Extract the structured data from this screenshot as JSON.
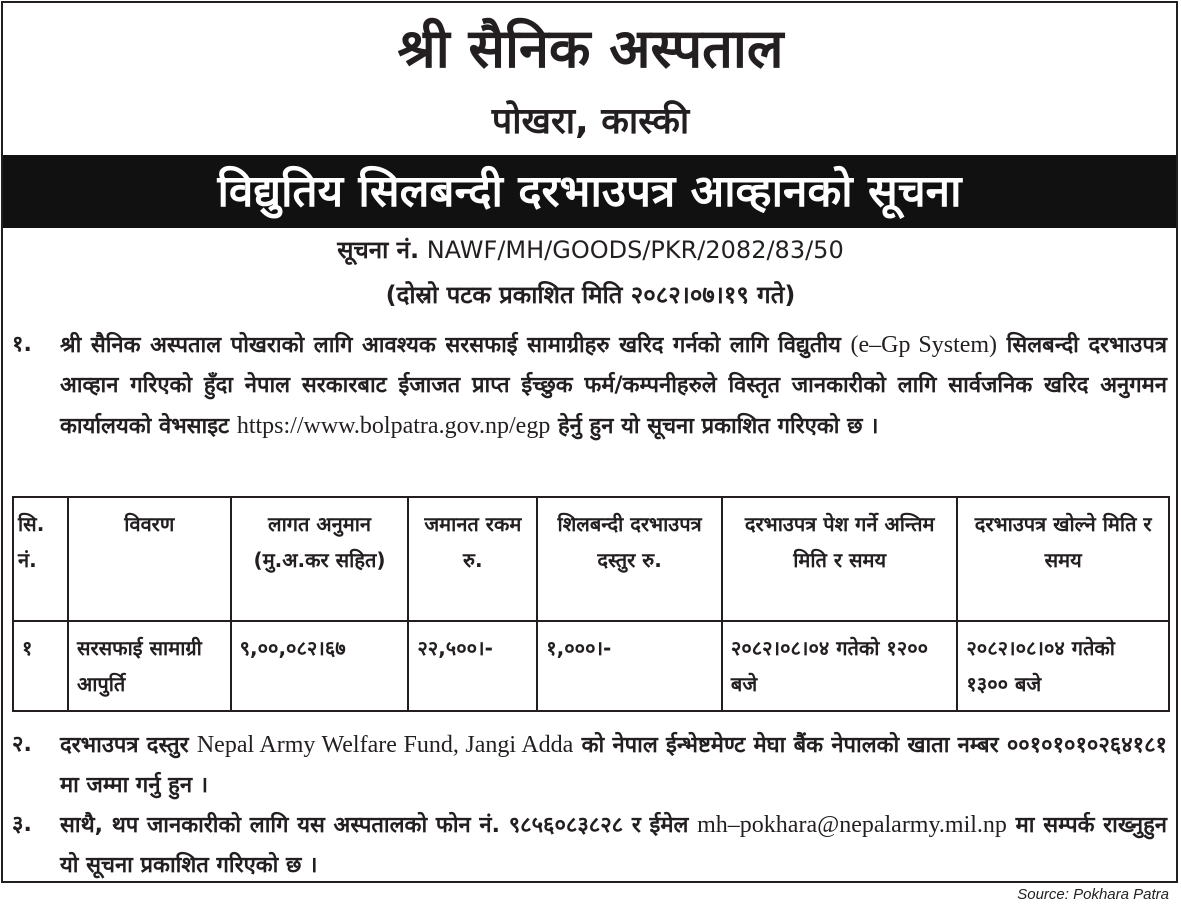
{
  "header": {
    "title": "श्री सैनिक अस्पताल",
    "location": "पोखरा, कास्की",
    "banner": "विद्युतिय सिलबन्दी दरभाउपत्र आव्हानको सूचना"
  },
  "notice": {
    "label": "सूचना नं.",
    "number": "NAWF/MH/GOODS/PKR/2082/83/50",
    "published": "(दोस्रो पटक प्रकाशित मिति २०८२।०७।१९ गते)"
  },
  "paragraphs": [
    {
      "num": "१.",
      "parts": [
        "श्री सैनिक अस्पताल पोखराको लागि आवश्यक सरसफाई सामाग्रीहरु खरिद गर्नको लागि विद्युतीय ",
        "(e–Gp System)",
        " सिलबन्दी दरभाउपत्र आव्हान गरिएको हुँदा नेपाल सरकारबाट ईजाजत प्राप्त ईच्छुक फर्म/कम्पनीहरुले विस्तृत जानकारीको लागि सार्वजनिक खरिद अनुगमन कार्यालयको वेभसाइट ",
        "https://www.bolpatra.gov.np/egp",
        " हेर्नु हुन यो सूचना प्रकाशित गरिएको छ ।"
      ]
    },
    {
      "num": "२.",
      "parts": [
        "दरभाउपत्र दस्तुर ",
        "Nepal Army Welfare Fund, Jangi Adda",
        " को नेपाल ईन्भेष्टमेण्ट मेघा बैंक नेपालको खाता नम्बर ००१०१०१०२६४१८१ मा जम्मा गर्नु हुन ।"
      ]
    },
    {
      "num": "३.",
      "parts": [
        "साथै, थप जानकारीको लागि यस अस्पतालको फोन नं. ९८५६०८३८२८ र ईमेल ",
        "mh–pokhara@nepalarmy.mil.np",
        " मा सम्पर्क राख्नुहुन यो सूचना प्रकाशित गरिएको छ ।"
      ]
    }
  ],
  "table": {
    "headers": [
      "सि. नं.",
      "विवरण",
      "लागत अनुमान (मु.अ.कर सहित)",
      "जमानत रकम रु.",
      "शिलबन्दी दरभाउपत्र दस्तुर रु.",
      "दरभाउपत्र पेश गर्ने अन्तिम मिति र समय",
      "दरभाउपत्र खोल्ने मिति र समय"
    ],
    "rows": [
      [
        "१",
        "सरसफाई सामाग्री आपुर्ति",
        "९,००,०८२।६७",
        "२२,५००।-",
        "१,०००।-",
        "२०८२।०८।०४ गतेको १२०० बजे",
        "२०८२।०८।०४ गतेको १३०० बजे"
      ]
    ]
  },
  "source": "Source: Pokhara Patra"
}
